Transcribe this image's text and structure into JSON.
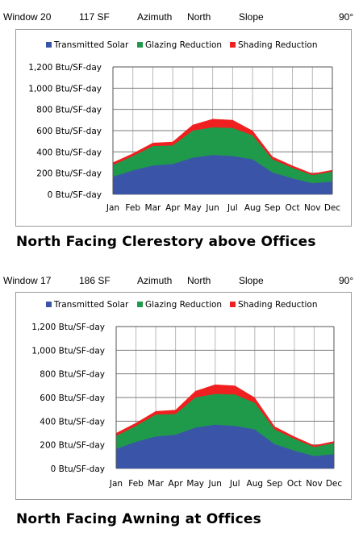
{
  "charts": [
    {
      "header": {
        "window": "Window 20",
        "area": "117 SF",
        "azimuth_label": "Azimuth",
        "azimuth_value": "North",
        "slope_label": "Slope",
        "slope_value": "90°"
      },
      "caption": "North Facing Clerestory above Offices"
    },
    {
      "header": {
        "window": "Window 17",
        "area": "186 SF",
        "azimuth_label": "Azimuth",
        "azimuth_value": "North",
        "slope_label": "Slope",
        "slope_value": "90°"
      },
      "caption": "North Facing Awning at Offices"
    }
  ],
  "chart_data": [
    {
      "type": "area",
      "stacked": true,
      "categories": [
        "Jan",
        "Feb",
        "Mar",
        "Apr",
        "May",
        "Jun",
        "Jul",
        "Aug",
        "Sep",
        "Oct",
        "Nov",
        "Dec"
      ],
      "series": [
        {
          "name": "Transmitted Solar",
          "color": "#3a55a8",
          "values": [
            165,
            225,
            270,
            285,
            345,
            370,
            360,
            330,
            205,
            150,
            105,
            120
          ]
        },
        {
          "name": "Glazing Reduction",
          "color": "#1f9a4a",
          "values": [
            110,
            135,
            185,
            175,
            255,
            260,
            265,
            225,
            125,
            100,
            75,
            95
          ]
        },
        {
          "name": "Shading Reduction",
          "color": "#f02020",
          "values": [
            25,
            25,
            30,
            35,
            55,
            80,
            75,
            45,
            25,
            20,
            15,
            15
          ]
        }
      ],
      "yticks": [
        "0 Btu/SF-day",
        "200 Btu/SF-day",
        "400 Btu/SF-day",
        "600 Btu/SF-day",
        "800 Btu/SF-day",
        "1,000 Btu/SF-day",
        "1,200 Btu/SF-day"
      ],
      "ylim": [
        0,
        1200
      ],
      "legend_position": "top",
      "grid": true
    },
    {
      "type": "area",
      "stacked": true,
      "categories": [
        "Jan",
        "Feb",
        "Mar",
        "Apr",
        "May",
        "Jun",
        "Jul",
        "Aug",
        "Sep",
        "Oct",
        "Nov",
        "Dec"
      ],
      "series": [
        {
          "name": "Transmitted Solar",
          "color": "#3a55a8",
          "values": [
            165,
            225,
            270,
            285,
            345,
            370,
            360,
            330,
            205,
            150,
            105,
            120
          ]
        },
        {
          "name": "Glazing Reduction",
          "color": "#1f9a4a",
          "values": [
            110,
            135,
            185,
            175,
            255,
            260,
            265,
            225,
            125,
            100,
            75,
            95
          ]
        },
        {
          "name": "Shading Reduction",
          "color": "#f02020",
          "values": [
            25,
            25,
            30,
            35,
            55,
            80,
            75,
            45,
            25,
            20,
            15,
            15
          ]
        }
      ],
      "yticks": [
        "0 Btu/SF-day",
        "200 Btu/SF-day",
        "400 Btu/SF-day",
        "600 Btu/SF-day",
        "800 Btu/SF-day",
        "1,000 Btu/SF-day",
        "1,200 Btu/SF-day"
      ],
      "ylim": [
        0,
        1200
      ],
      "legend_position": "top",
      "grid": true
    }
  ]
}
